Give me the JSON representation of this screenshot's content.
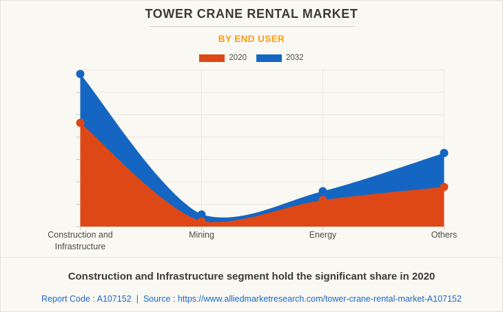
{
  "header": {
    "title": "TOWER CRANE RENTAL MARKET",
    "subtitle": "BY END USER"
  },
  "legend": [
    {
      "label": "2020",
      "color": "#de4816"
    },
    {
      "label": "2032",
      "color": "#1566c2"
    }
  ],
  "chart_data": {
    "type": "area",
    "smooth": true,
    "grid": true,
    "legend_position": "top",
    "y_axis_labels_hidden": true,
    "categories": [
      "Construction and Infrastructure",
      "Mining",
      "Energy",
      "Others"
    ],
    "series": [
      {
        "name": "2032",
        "color": "#1566c2",
        "values": [
          97.4,
          7.7,
          22.6,
          47.0
        ]
      },
      {
        "name": "2020",
        "color": "#de4816",
        "values": [
          66.2,
          3.3,
          16.9,
          25.3
        ]
      }
    ],
    "xlabel": "",
    "ylabel": "",
    "ylim": [
      0,
      100
    ],
    "y_gridline_divisions": 7
  },
  "footer": {
    "headline": "Construction and Infrastructure segment hold the significant share in 2020",
    "report_code": "Report Code : A107152",
    "separator": "|",
    "source_label": "Source :",
    "source_url": "https://www.alliedmarketresearch.com/tower-crane-rental-market-A107152"
  }
}
